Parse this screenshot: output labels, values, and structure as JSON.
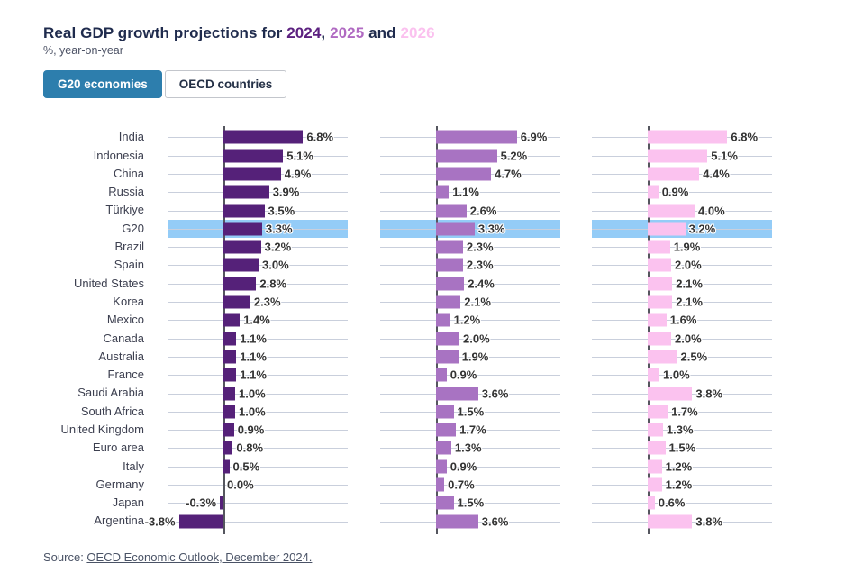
{
  "header": {
    "title_prefix": "Real GDP growth projections for ",
    "year_2024": "2024",
    "sep_comma": ", ",
    "year_2025": "2025",
    "sep_and": " and ",
    "year_2026": "2026",
    "subtitle": "%, year-on-year"
  },
  "tabs": [
    {
      "label": "G20 economies",
      "active": true
    },
    {
      "label": "OECD countries",
      "active": false
    }
  ],
  "source": {
    "prefix": "Source: ",
    "link_text": "OECD Economic Outlook, December 2024."
  },
  "colors": {
    "title_text": "#1f2b4d",
    "year_2024": "#5c2180",
    "year_2025": "#b06ac2",
    "year_2026": "#fbc1ef",
    "tab_active_bg": "#2d7ead",
    "highlight_band": "#94ccf7",
    "series_2024": "#552179",
    "series_2025": "#a873c2",
    "series_2026": "#fbc2ef"
  },
  "chart_data": {
    "type": "bar",
    "orientation": "horizontal",
    "value_suffix": "%",
    "highlight_row": "G20",
    "grid": true,
    "categories": [
      "India",
      "Indonesia",
      "China",
      "Russia",
      "Türkiye",
      "G20",
      "Brazil",
      "Spain",
      "United States",
      "Korea",
      "Mexico",
      "Canada",
      "Australia",
      "France",
      "Saudi Arabia",
      "South Africa",
      "United Kingdom",
      "Euro area",
      "Italy",
      "Germany",
      "Japan",
      "Argentina"
    ],
    "series": [
      {
        "name": "2024",
        "color": "#552179",
        "values": [
          6.8,
          5.1,
          4.9,
          3.9,
          3.5,
          3.3,
          3.2,
          3.0,
          2.8,
          2.3,
          1.4,
          1.1,
          1.1,
          1.1,
          1.0,
          1.0,
          0.9,
          0.8,
          0.5,
          0.0,
          -0.3,
          -3.8
        ]
      },
      {
        "name": "2025",
        "color": "#a873c2",
        "values": [
          6.9,
          5.2,
          4.7,
          1.1,
          2.6,
          3.3,
          2.3,
          2.3,
          2.4,
          2.1,
          1.2,
          2.0,
          1.9,
          0.9,
          3.6,
          1.5,
          1.7,
          1.3,
          0.9,
          0.7,
          1.5,
          3.6
        ]
      },
      {
        "name": "2026",
        "color": "#fbc2ef",
        "values": [
          6.8,
          5.1,
          4.4,
          0.9,
          4.0,
          3.2,
          1.9,
          2.0,
          2.1,
          2.1,
          1.6,
          2.0,
          2.5,
          1.0,
          3.8,
          1.7,
          1.3,
          1.5,
          1.2,
          1.2,
          0.6,
          3.8
        ]
      }
    ]
  }
}
